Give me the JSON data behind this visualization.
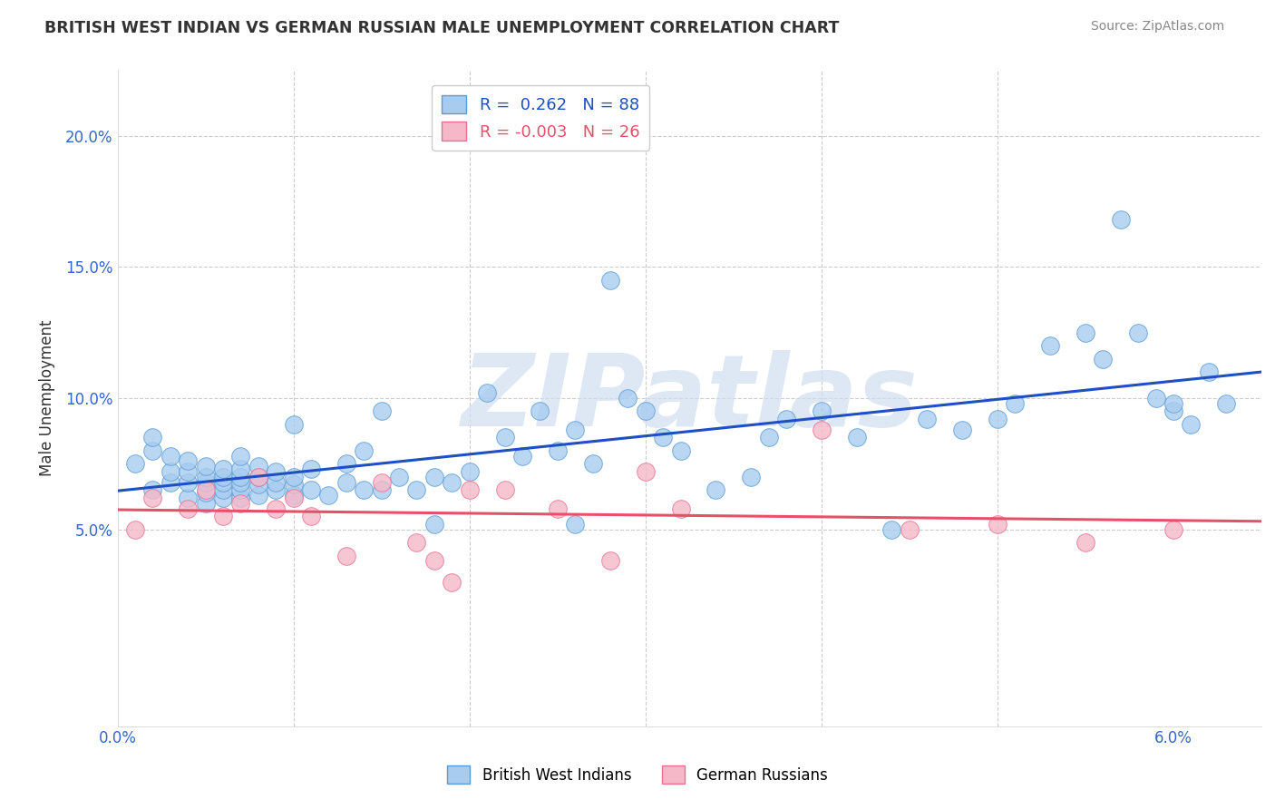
{
  "title": "BRITISH WEST INDIAN VS GERMAN RUSSIAN MALE UNEMPLOYMENT CORRELATION CHART",
  "source": "Source: ZipAtlas.com",
  "ylabel": "Male Unemployment",
  "xlim": [
    0.0,
    0.065
  ],
  "ylim": [
    -0.025,
    0.225
  ],
  "xtick_positions": [
    0.0,
    0.01,
    0.02,
    0.03,
    0.04,
    0.05,
    0.06
  ],
  "xtick_labels": [
    "0.0%",
    "",
    "",
    "",
    "",
    "",
    "6.0%"
  ],
  "ytick_positions": [
    0.05,
    0.1,
    0.15,
    0.2
  ],
  "ytick_labels": [
    "5.0%",
    "10.0%",
    "15.0%",
    "20.0%"
  ],
  "blue_face": "#A8CCF0",
  "blue_edge": "#5B9BD5",
  "pink_face": "#F5B8C8",
  "pink_edge": "#E87090",
  "blue_line": "#1E4FC4",
  "pink_line": "#E8506A",
  "r_blue": 0.262,
  "n_blue": 88,
  "r_pink": -0.003,
  "n_pink": 26,
  "watermark": "ZIPatlas",
  "watermark_color": "#D0DFF0",
  "legend_label_blue": "British West Indians",
  "legend_label_pink": "German Russians",
  "blue_x": [
    0.001,
    0.002,
    0.002,
    0.002,
    0.003,
    0.003,
    0.003,
    0.004,
    0.004,
    0.004,
    0.004,
    0.005,
    0.005,
    0.005,
    0.005,
    0.005,
    0.006,
    0.006,
    0.006,
    0.006,
    0.006,
    0.007,
    0.007,
    0.007,
    0.007,
    0.007,
    0.007,
    0.008,
    0.008,
    0.008,
    0.008,
    0.009,
    0.009,
    0.009,
    0.01,
    0.01,
    0.01,
    0.01,
    0.011,
    0.011,
    0.012,
    0.013,
    0.013,
    0.014,
    0.014,
    0.015,
    0.015,
    0.016,
    0.017,
    0.018,
    0.018,
    0.019,
    0.02,
    0.021,
    0.022,
    0.023,
    0.024,
    0.025,
    0.026,
    0.026,
    0.027,
    0.028,
    0.029,
    0.03,
    0.031,
    0.032,
    0.034,
    0.036,
    0.037,
    0.038,
    0.04,
    0.042,
    0.044,
    0.046,
    0.048,
    0.05,
    0.051,
    0.053,
    0.055,
    0.056,
    0.057,
    0.058,
    0.059,
    0.06,
    0.06,
    0.061,
    0.062,
    0.063
  ],
  "blue_y": [
    0.075,
    0.065,
    0.08,
    0.085,
    0.068,
    0.072,
    0.078,
    0.062,
    0.068,
    0.072,
    0.076,
    0.06,
    0.064,
    0.068,
    0.07,
    0.074,
    0.062,
    0.065,
    0.068,
    0.07,
    0.073,
    0.062,
    0.065,
    0.068,
    0.07,
    0.073,
    0.078,
    0.063,
    0.067,
    0.07,
    0.074,
    0.065,
    0.068,
    0.072,
    0.063,
    0.067,
    0.07,
    0.09,
    0.065,
    0.073,
    0.063,
    0.068,
    0.075,
    0.065,
    0.08,
    0.065,
    0.095,
    0.07,
    0.065,
    0.07,
    0.052,
    0.068,
    0.072,
    0.102,
    0.085,
    0.078,
    0.095,
    0.08,
    0.088,
    0.052,
    0.075,
    0.145,
    0.1,
    0.095,
    0.085,
    0.08,
    0.065,
    0.07,
    0.085,
    0.092,
    0.095,
    0.085,
    0.05,
    0.092,
    0.088,
    0.092,
    0.098,
    0.12,
    0.125,
    0.115,
    0.168,
    0.125,
    0.1,
    0.095,
    0.098,
    0.09,
    0.11,
    0.098
  ],
  "pink_x": [
    0.001,
    0.002,
    0.004,
    0.005,
    0.006,
    0.007,
    0.008,
    0.009,
    0.01,
    0.011,
    0.013,
    0.015,
    0.017,
    0.018,
    0.019,
    0.02,
    0.022,
    0.025,
    0.028,
    0.03,
    0.032,
    0.04,
    0.045,
    0.05,
    0.055,
    0.06
  ],
  "pink_y": [
    0.05,
    0.062,
    0.058,
    0.065,
    0.055,
    0.06,
    0.07,
    0.058,
    0.062,
    0.055,
    0.04,
    0.068,
    0.045,
    0.038,
    0.03,
    0.065,
    0.065,
    0.058,
    0.038,
    0.072,
    0.058,
    0.088,
    0.05,
    0.052,
    0.045,
    0.05
  ]
}
